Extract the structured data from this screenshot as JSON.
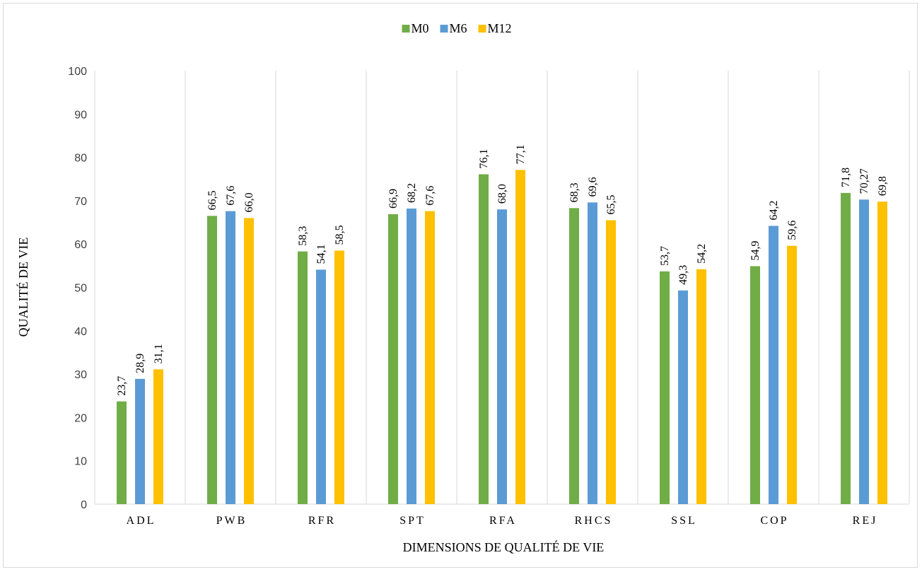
{
  "chart_data": {
    "type": "bar",
    "title": "",
    "xlabel": "DIMENSIONS DE QUALITÉ DE VIE",
    "ylabel": "QUALITÉ DE VIE",
    "ylim": [
      0,
      100
    ],
    "yticks": [
      "0",
      "10",
      "20",
      "30",
      "40",
      "50",
      "60",
      "70",
      "80",
      "90",
      "100"
    ],
    "legend_position": "top-center",
    "grid": "vertical-category-separators",
    "categories": [
      "ADL",
      "PWB",
      "RFR",
      "SPT",
      "RFA",
      "RHCS",
      "SSL",
      "COP",
      "REJ"
    ],
    "series": [
      {
        "name": "M0",
        "color": "#70ad47",
        "values": [
          23.7,
          66.5,
          58.3,
          66.9,
          76.1,
          68.3,
          53.7,
          54.9,
          71.8
        ],
        "labels": [
          "23,7",
          "66,5",
          "58,3",
          "66,9",
          "76,1",
          "68,3",
          "53,7",
          "54,9",
          "71,8"
        ]
      },
      {
        "name": "M6",
        "color": "#5b9bd5",
        "values": [
          28.9,
          67.6,
          54.1,
          68.2,
          68.0,
          69.6,
          49.3,
          64.2,
          70.27
        ],
        "labels": [
          "28,9",
          "67,6",
          "54,1",
          "68,2",
          "68,0",
          "69,6",
          "49,3",
          "64,2",
          "70,27"
        ]
      },
      {
        "name": "M12",
        "color": "#ffc000",
        "values": [
          31.1,
          66.0,
          58.5,
          67.6,
          77.1,
          65.5,
          54.2,
          59.6,
          69.8
        ],
        "labels": [
          "31,1",
          "66,0",
          "58,5",
          "67,6",
          "77,1",
          "65,5",
          "54,2",
          "59,6",
          "69,8"
        ]
      }
    ]
  }
}
